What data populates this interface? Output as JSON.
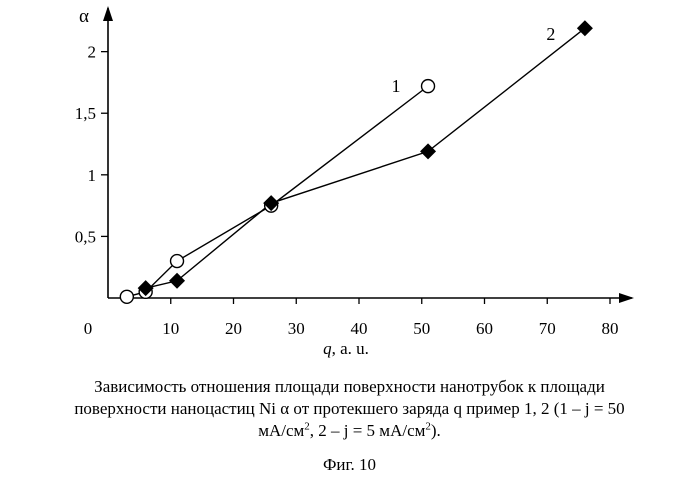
{
  "chart_data": {
    "type": "line",
    "xlabel": "q, a. u.",
    "ylabel": "α",
    "xlim": [
      0,
      80
    ],
    "ylim": [
      0,
      2.2
    ],
    "x_ticks": [
      "0",
      "10",
      "20",
      "30",
      "40",
      "50",
      "60",
      "70",
      "80"
    ],
    "y_ticks": [
      "0,5",
      "1",
      "1,5",
      "2"
    ],
    "grid": false,
    "series": [
      {
        "name": "1",
        "marker": "circle-open",
        "points": [
          [
            3,
            0.01
          ],
          [
            6,
            0.05
          ],
          [
            11,
            0.3
          ],
          [
            26,
            0.75
          ],
          [
            51,
            1.72
          ]
        ]
      },
      {
        "name": "2",
        "marker": "diamond-filled",
        "points": [
          [
            6,
            0.08
          ],
          [
            11,
            0.14
          ],
          [
            26,
            0.77
          ],
          [
            51,
            1.19
          ],
          [
            76,
            2.19
          ]
        ]
      }
    ]
  },
  "caption": {
    "line1": "Зависимость отношения площади поверхности нанотрубок к площади",
    "line2": "поверхности наноцастиц Ni α от протекшего заряда q пример 1, 2 (1 – j = 50",
    "line3_a": "мА/см",
    "line3_sup1": "2",
    "line3_b": ", 2 – j = 5 мА/см",
    "line3_sup2": "2",
    "line3_c": ")."
  },
  "figure_label": "Фиг. 10"
}
